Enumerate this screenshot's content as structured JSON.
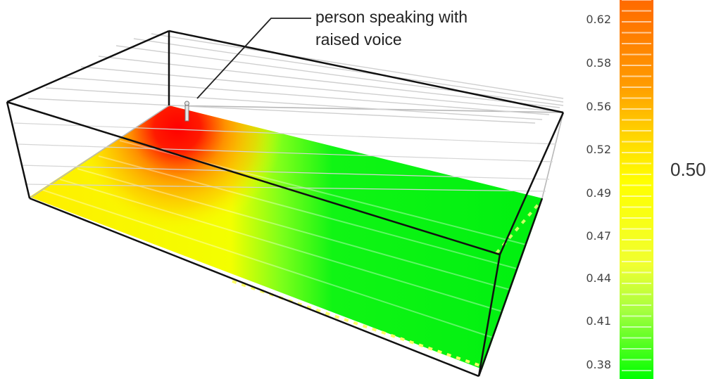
{
  "annotation": {
    "line1": "person speaking with",
    "line2": "raised voice"
  },
  "color_scale": {
    "ticks": [
      "0.62",
      "0.58",
      "0.56",
      "0.52",
      "0.49",
      "0.47",
      "0.44",
      "0.41",
      "0.38"
    ],
    "current_value": "0.50",
    "colors": {
      "high": "#ff7a00",
      "mid": "#ffff00",
      "low": "#00ff00",
      "peak": "#ff0000"
    }
  }
}
